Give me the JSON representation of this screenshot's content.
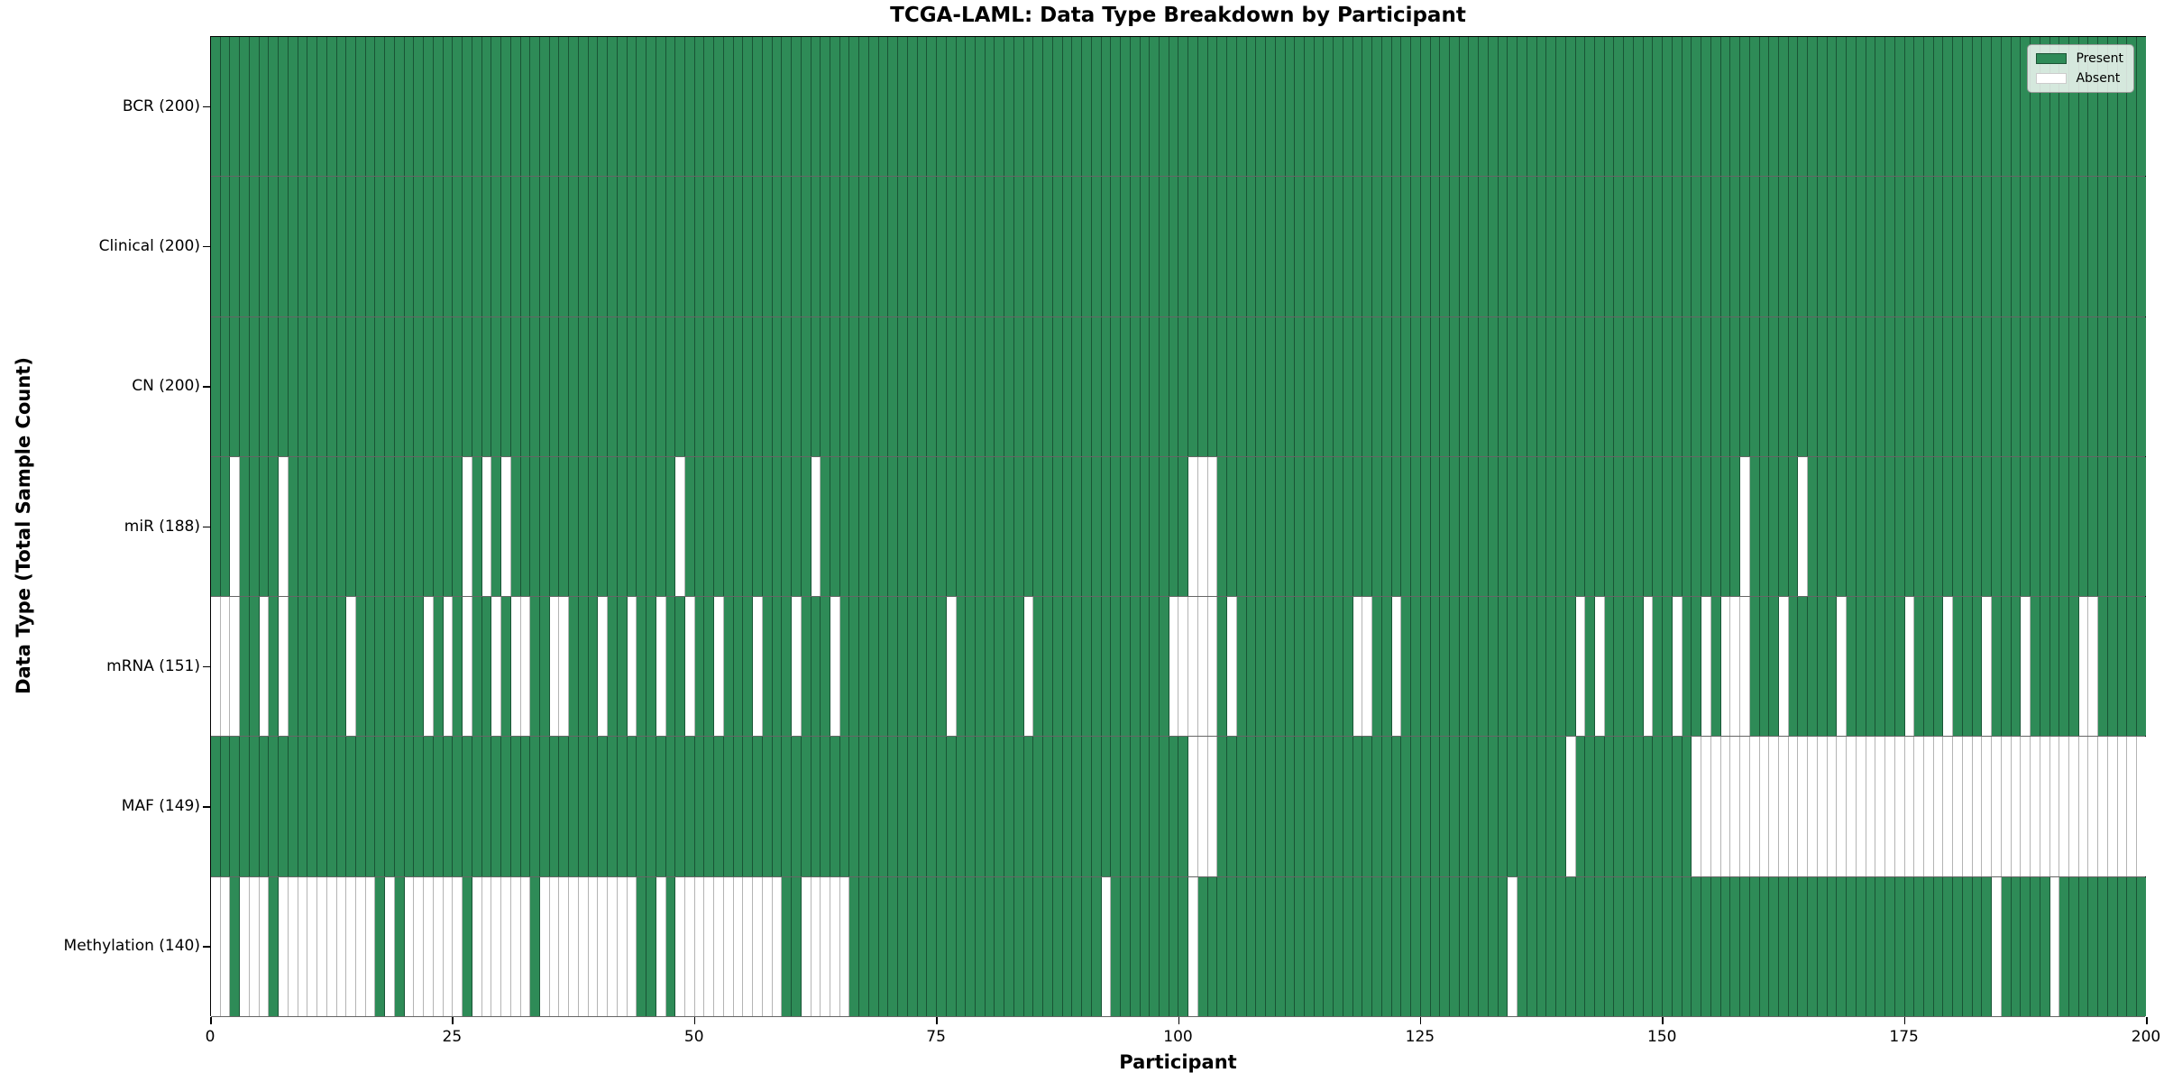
{
  "title": "TCGA-LAML: Data Type Breakdown by Participant",
  "xlabel": "Participant",
  "ylabel": "Data Type (Total Sample Count)",
  "legend": {
    "present_label": "Present",
    "absent_label": "Absent"
  },
  "colors": {
    "present": "#2e8b57",
    "absent": "#ffffff",
    "row_separator": "#141414",
    "plot_border": "#000000"
  },
  "chart_data": {
    "type": "heatmap",
    "x_axis": {
      "label": "Participant",
      "min": 0,
      "max": 200,
      "ticks": [
        0,
        25,
        50,
        75,
        100,
        125,
        150,
        175,
        200
      ]
    },
    "n_participants": 200,
    "legend_position": "upper right",
    "grid": "cell-borders",
    "rows": [
      {
        "label": "BCR (200)",
        "name": "BCR",
        "present_count": 200,
        "absent_indices": []
      },
      {
        "label": "Clinical (200)",
        "name": "Clinical",
        "present_count": 200,
        "absent_indices": []
      },
      {
        "label": "CN (200)",
        "name": "CN",
        "present_count": 200,
        "absent_indices": []
      },
      {
        "label": "miR (188)",
        "name": "miR",
        "present_count": 188,
        "absent_indices": [
          2,
          7,
          26,
          28,
          30,
          48,
          62,
          101,
          102,
          103,
          158,
          164
        ]
      },
      {
        "label": "mRNA (151)",
        "name": "mRNA",
        "present_count": 151,
        "absent_indices": [
          0,
          1,
          2,
          5,
          7,
          14,
          22,
          24,
          26,
          29,
          31,
          32,
          35,
          36,
          40,
          43,
          46,
          49,
          52,
          56,
          60,
          64,
          76,
          84,
          99,
          100,
          101,
          102,
          103,
          105,
          118,
          119,
          122,
          141,
          143,
          148,
          151,
          154,
          156,
          157,
          158,
          162,
          168,
          175,
          179,
          183,
          187,
          193,
          194
        ]
      },
      {
        "label": "MAF (149)",
        "name": "MAF",
        "present_count": 149,
        "absent_indices": [
          101,
          102,
          103,
          140,
          153,
          154,
          155,
          156,
          157,
          158,
          159,
          160,
          161,
          162,
          163,
          164,
          165,
          166,
          167,
          168,
          169,
          170,
          171,
          172,
          173,
          174,
          175,
          176,
          177,
          178,
          179,
          180,
          181,
          182,
          183,
          184,
          185,
          186,
          187,
          188,
          189,
          190,
          191,
          192,
          193,
          194,
          195,
          196,
          197,
          198,
          199
        ]
      },
      {
        "label": "Methylation (140)",
        "name": "Methylation",
        "present_count": 140,
        "absent_indices": [
          0,
          1,
          3,
          4,
          5,
          7,
          8,
          9,
          10,
          11,
          12,
          13,
          14,
          15,
          16,
          18,
          20,
          21,
          22,
          23,
          24,
          25,
          27,
          28,
          29,
          30,
          31,
          32,
          34,
          35,
          36,
          37,
          38,
          39,
          40,
          41,
          42,
          43,
          46,
          48,
          49,
          50,
          51,
          52,
          53,
          54,
          55,
          56,
          57,
          58,
          61,
          62,
          63,
          64,
          65,
          92,
          101,
          134,
          184,
          190
        ]
      }
    ]
  }
}
